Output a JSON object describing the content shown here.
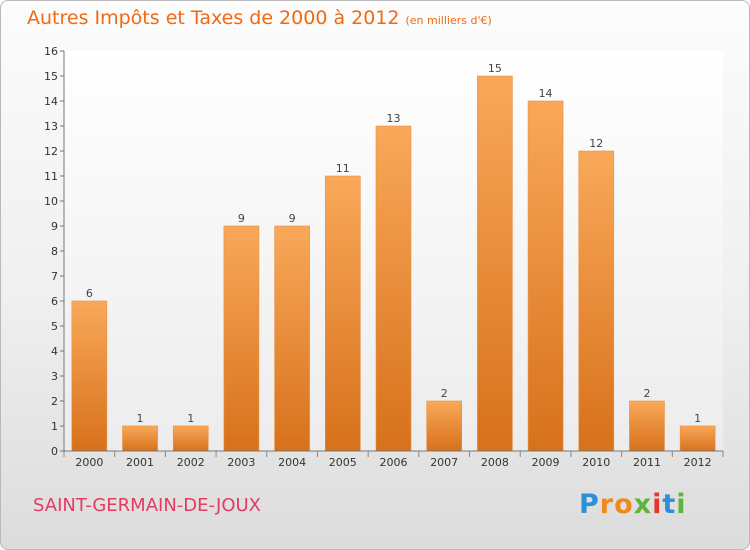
{
  "header": {
    "title": "Autres Impôts et Taxes de 2000 à 2012",
    "subtitle": "(en milliers d'€)"
  },
  "footer": {
    "commune": "SAINT-GERMAIN-DE-JOUX",
    "logo_letters": [
      "P",
      "r",
      "o",
      "x",
      "i",
      "t",
      "i"
    ]
  },
  "colors": {
    "title": "#ef6a12",
    "commune": "#e53a62",
    "bar_top": "#f9a85a",
    "bar_bottom": "#d7711b",
    "logo": [
      "#2d8fd6",
      "#f08a1e",
      "#f08a1e",
      "#5fb43c",
      "#e3372f",
      "#2d8fd6",
      "#5fb43c"
    ]
  },
  "chart_data": {
    "type": "bar",
    "categories": [
      "2000",
      "2001",
      "2002",
      "2003",
      "2004",
      "2005",
      "2006",
      "2007",
      "2008",
      "2009",
      "2010",
      "2011",
      "2012"
    ],
    "values": [
      6,
      1,
      1,
      9,
      9,
      11,
      13,
      2,
      15,
      14,
      12,
      2,
      1
    ],
    "ylim": [
      0,
      16
    ],
    "yticks": [
      0,
      1,
      2,
      3,
      4,
      5,
      6,
      7,
      8,
      9,
      10,
      11,
      12,
      13,
      14,
      15,
      16
    ],
    "grid": false,
    "data_labels": true
  }
}
